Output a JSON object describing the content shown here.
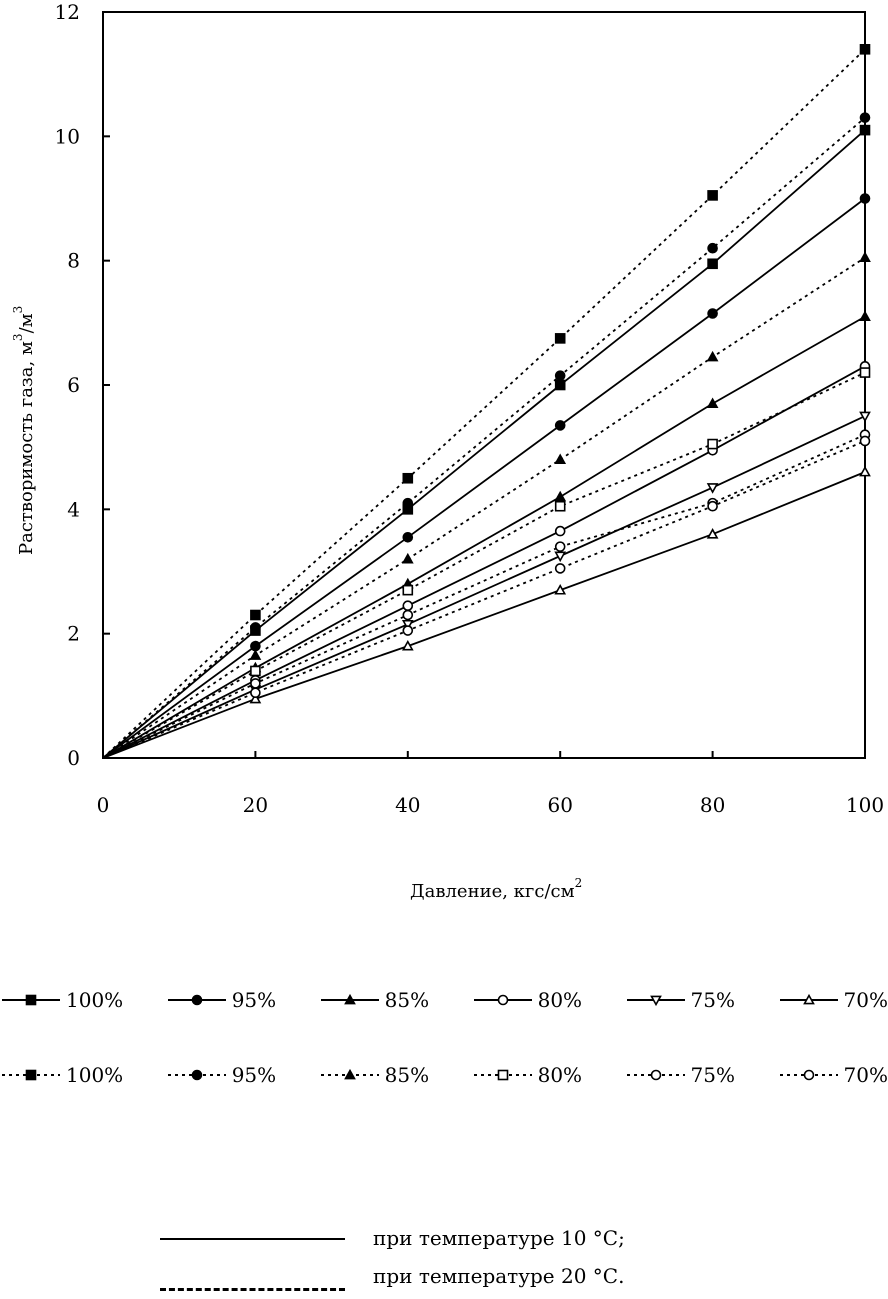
{
  "chart_data": {
    "type": "line",
    "title": "",
    "xlabel": "Давление, кгс/см",
    "xlabel_sup": "2",
    "ylabel": "Растворимость газа, м",
    "ylabel_sup": "3",
    "ylabel_tail": "/м",
    "ylabel_tail_sup": "3",
    "x": [
      0,
      20,
      40,
      60,
      80,
      100
    ],
    "x_tick_labels": [
      "0",
      "20",
      "40",
      "60",
      "80",
      "100"
    ],
    "y_ticks": [
      0,
      2,
      4,
      6,
      8,
      10,
      12
    ],
    "y_tick_labels": [
      "0",
      "2",
      "4",
      "6",
      "8",
      "10",
      "12"
    ],
    "xlim": [
      0,
      100
    ],
    "ylim": [
      0,
      12
    ],
    "grid": false,
    "legend_position": "bottom",
    "series": [
      {
        "name": "100%",
        "group": "10",
        "marker": "square-filled",
        "values": [
          0,
          2.05,
          4.0,
          6.0,
          7.95,
          10.1
        ]
      },
      {
        "name": "95%",
        "group": "10",
        "marker": "circle-filled",
        "values": [
          0,
          1.8,
          3.55,
          5.35,
          7.15,
          9.0
        ]
      },
      {
        "name": "85%",
        "group": "10",
        "marker": "triangle-filled",
        "values": [
          0,
          1.45,
          2.8,
          4.2,
          5.7,
          7.1
        ]
      },
      {
        "name": "80%",
        "group": "10",
        "marker": "circle-open",
        "values": [
          0,
          1.25,
          2.45,
          3.65,
          4.95,
          6.3
        ]
      },
      {
        "name": "75%",
        "group": "10",
        "marker": "triangle-down-open",
        "values": [
          0,
          1.1,
          2.15,
          3.25,
          4.35,
          5.5
        ]
      },
      {
        "name": "70%",
        "group": "10",
        "marker": "triangle-open",
        "values": [
          0,
          0.95,
          1.8,
          2.7,
          3.6,
          4.6
        ]
      },
      {
        "name": "100%",
        "group": "20",
        "marker": "square-filled",
        "values": [
          0,
          2.3,
          4.5,
          6.75,
          9.05,
          11.4
        ]
      },
      {
        "name": "95%",
        "group": "20",
        "marker": "circle-filled",
        "values": [
          0,
          2.1,
          4.1,
          6.15,
          8.2,
          10.3
        ]
      },
      {
        "name": "85%",
        "group": "20",
        "marker": "triangle-filled",
        "values": [
          0,
          1.65,
          3.2,
          4.8,
          6.45,
          8.05
        ]
      },
      {
        "name": "80%",
        "group": "20",
        "marker": "square-open",
        "values": [
          0,
          1.4,
          2.7,
          4.05,
          5.05,
          6.2
        ]
      },
      {
        "name": "75%",
        "group": "20",
        "marker": "circle-open",
        "values": [
          0,
          1.2,
          2.3,
          3.4,
          4.1,
          5.2
        ]
      },
      {
        "name": "70%",
        "group": "20",
        "marker": "circle-open",
        "values": [
          0,
          1.05,
          2.05,
          3.05,
          4.05,
          5.1
        ]
      }
    ],
    "legend_row1": [
      "100%",
      "95%",
      "85%",
      "80%",
      "75%",
      "70%"
    ],
    "legend_row2": [
      "100%",
      "95%",
      "85%",
      "80%",
      "75%",
      "70%"
    ],
    "line_style_notes": [
      {
        "style": "solid",
        "text": "при температуре 10 °С;"
      },
      {
        "style": "dashed",
        "text": "при температуре 20 °С."
      }
    ]
  }
}
